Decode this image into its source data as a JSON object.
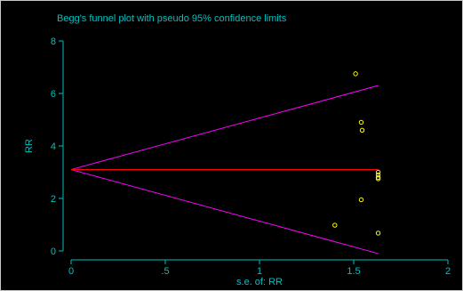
{
  "chart_data": {
    "type": "scatter",
    "title": "Begg's funnel plot with pseudo 95% confidence limits",
    "xlabel": "s.e. of: RR",
    "ylabel": "RR",
    "xlim": [
      0,
      2
    ],
    "ylim": [
      0,
      8
    ],
    "x_ticks": [
      {
        "value": 0,
        "label": "0"
      },
      {
        "value": 0.5,
        "label": ".5"
      },
      {
        "value": 1,
        "label": "1"
      },
      {
        "value": 1.5,
        "label": "1.5"
      },
      {
        "value": 2,
        "label": "2"
      }
    ],
    "y_ticks": [
      {
        "value": 0,
        "label": "0"
      },
      {
        "value": 2,
        "label": "2"
      },
      {
        "value": 4,
        "label": "4"
      },
      {
        "value": 6,
        "label": "6"
      },
      {
        "value": 8,
        "label": "8"
      }
    ],
    "pooled_estimate": 3.1,
    "pseudo_ci_upper": [
      [
        0,
        3.1
      ],
      [
        1.63,
        6.3
      ]
    ],
    "pseudo_ci_lower": [
      [
        0,
        3.1
      ],
      [
        1.63,
        -0.1
      ]
    ],
    "points": [
      {
        "x": 1.51,
        "y": 6.75
      },
      {
        "x": 1.54,
        "y": 4.9
      },
      {
        "x": 1.545,
        "y": 4.6
      },
      {
        "x": 1.63,
        "y": 3.0
      },
      {
        "x": 1.63,
        "y": 2.9
      },
      {
        "x": 1.63,
        "y": 2.8
      },
      {
        "x": 1.63,
        "y": 2.75
      },
      {
        "x": 1.54,
        "y": 1.95
      },
      {
        "x": 1.4,
        "y": 0.98
      },
      {
        "x": 1.63,
        "y": 0.68
      }
    ],
    "grid": false,
    "legend": "none",
    "colors": {
      "background": "#000000",
      "axis": "#00c0c0",
      "text": "#00c0c0",
      "pooled_line": "#ff0000",
      "ci_lines": "#ff00ff",
      "markers": "#ffff00"
    }
  }
}
